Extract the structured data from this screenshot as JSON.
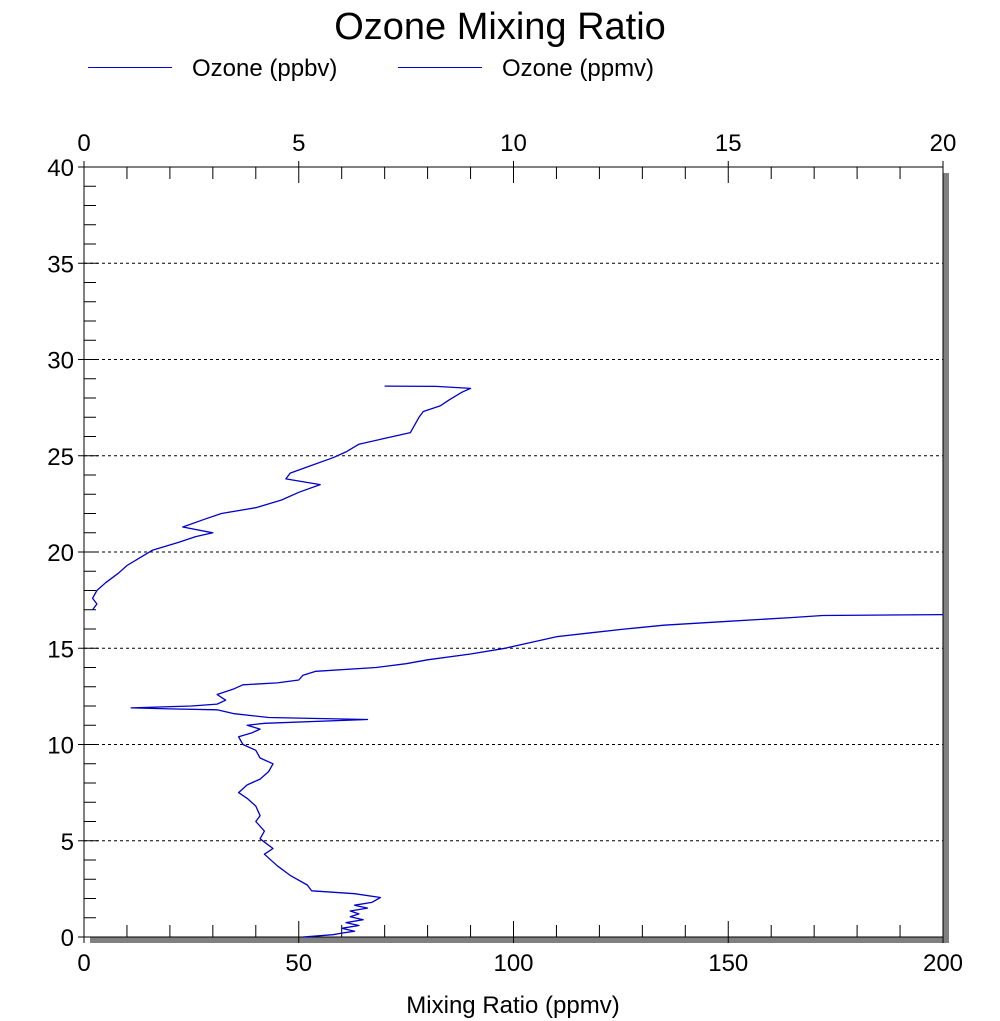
{
  "chart_data": {
    "type": "line",
    "title": "Ozone Mixing Ratio",
    "xlabel": "Mixing Ratio (ppmv)",
    "ylabel": "",
    "bottom_axis": {
      "range": [
        0,
        200
      ],
      "ticks": [
        "0",
        "50",
        "100",
        "150",
        "200"
      ],
      "tick_values": [
        0,
        50,
        100,
        150,
        200
      ]
    },
    "top_axis": {
      "range": [
        0,
        20
      ],
      "ticks": [
        "0",
        "5",
        "10",
        "15",
        "20"
      ],
      "tick_values": [
        0,
        5,
        10,
        15,
        20
      ]
    },
    "left_axis": {
      "range": [
        0,
        40
      ],
      "ticks": [
        "0",
        "5",
        "10",
        "15",
        "20",
        "25",
        "30",
        "35",
        "40"
      ],
      "tick_values": [
        0,
        5,
        10,
        15,
        20,
        25,
        30,
        35,
        40
      ]
    },
    "grid": "horizontal dashed lines at major y ticks",
    "legend_placement": "top-left",
    "line_color": "#0000cc",
    "series": [
      {
        "name": "Ozone (ppbv)",
        "axis": "bottom",
        "points": [
          [
            51,
            0.0
          ],
          [
            58,
            0.12
          ],
          [
            60,
            0.2
          ],
          [
            63,
            0.3
          ],
          [
            60,
            0.45
          ],
          [
            64,
            0.6
          ],
          [
            61,
            0.75
          ],
          [
            65,
            0.9
          ],
          [
            62,
            1.05
          ],
          [
            64,
            1.2
          ],
          [
            62,
            1.35
          ],
          [
            66,
            1.5
          ],
          [
            63,
            1.65
          ],
          [
            67,
            1.8
          ],
          [
            69,
            2.05
          ],
          [
            63,
            2.25
          ],
          [
            53,
            2.4
          ],
          [
            52,
            2.7
          ],
          [
            48,
            3.2
          ],
          [
            45,
            3.7
          ],
          [
            42,
            4.3
          ],
          [
            44,
            4.6
          ],
          [
            41,
            5.1
          ],
          [
            42,
            5.5
          ],
          [
            40,
            6.0
          ],
          [
            41,
            6.3
          ],
          [
            40,
            6.8
          ],
          [
            38,
            7.2
          ],
          [
            36,
            7.5
          ],
          [
            38,
            7.9
          ],
          [
            41,
            8.2
          ],
          [
            43,
            8.6
          ],
          [
            44,
            9.0
          ],
          [
            41,
            9.3
          ],
          [
            40,
            9.7
          ],
          [
            37,
            10.0
          ],
          [
            36,
            10.4
          ],
          [
            39,
            10.6
          ],
          [
            41,
            10.8
          ],
          [
            38,
            11.0
          ],
          [
            42,
            11.1
          ],
          [
            66,
            11.3
          ],
          [
            43,
            11.4
          ],
          [
            35,
            11.6
          ],
          [
            31,
            11.8
          ],
          [
            20,
            11.85
          ],
          [
            11,
            11.9
          ],
          [
            25,
            12.0
          ],
          [
            31,
            12.1
          ],
          [
            33,
            12.3
          ],
          [
            31,
            12.6
          ],
          [
            35,
            12.9
          ],
          [
            37,
            13.1
          ],
          [
            45,
            13.2
          ],
          [
            50,
            13.35
          ],
          [
            51,
            13.6
          ],
          [
            54,
            13.8
          ],
          [
            68,
            14.0
          ],
          [
            75,
            14.2
          ],
          [
            80,
            14.4
          ],
          [
            90,
            14.7
          ],
          [
            98,
            15.0
          ],
          [
            104,
            15.3
          ],
          [
            110,
            15.6
          ],
          [
            118,
            15.8
          ],
          [
            126,
            16.0
          ],
          [
            135,
            16.2
          ],
          [
            150,
            16.4
          ],
          [
            165,
            16.6
          ],
          [
            172,
            16.7
          ],
          [
            200,
            16.75
          ]
        ]
      },
      {
        "name": "Ozone (ppmv)",
        "axis": "top",
        "points": [
          [
            0.2,
            17.0
          ],
          [
            0.3,
            17.3
          ],
          [
            0.2,
            17.6
          ],
          [
            0.3,
            18.0
          ],
          [
            0.5,
            18.4
          ],
          [
            0.8,
            18.9
          ],
          [
            1.0,
            19.3
          ],
          [
            1.3,
            19.7
          ],
          [
            1.6,
            20.1
          ],
          [
            2.2,
            20.5
          ],
          [
            2.6,
            20.8
          ],
          [
            3.0,
            21.0
          ],
          [
            2.3,
            21.3
          ],
          [
            2.8,
            21.7
          ],
          [
            3.2,
            22.0
          ],
          [
            4.0,
            22.3
          ],
          [
            4.6,
            22.7
          ],
          [
            5.0,
            23.1
          ],
          [
            5.5,
            23.5
          ],
          [
            4.7,
            23.8
          ],
          [
            4.8,
            24.1
          ],
          [
            5.3,
            24.5
          ],
          [
            5.8,
            24.9
          ],
          [
            6.1,
            25.2
          ],
          [
            6.4,
            25.6
          ],
          [
            7.0,
            25.9
          ],
          [
            7.6,
            26.2
          ],
          [
            7.7,
            26.6
          ],
          [
            7.8,
            27.0
          ],
          [
            7.9,
            27.3
          ],
          [
            8.3,
            27.6
          ],
          [
            8.5,
            27.9
          ],
          [
            8.8,
            28.3
          ],
          [
            9.0,
            28.5
          ],
          [
            8.2,
            28.6
          ],
          [
            7.0,
            28.62
          ]
        ]
      }
    ]
  }
}
